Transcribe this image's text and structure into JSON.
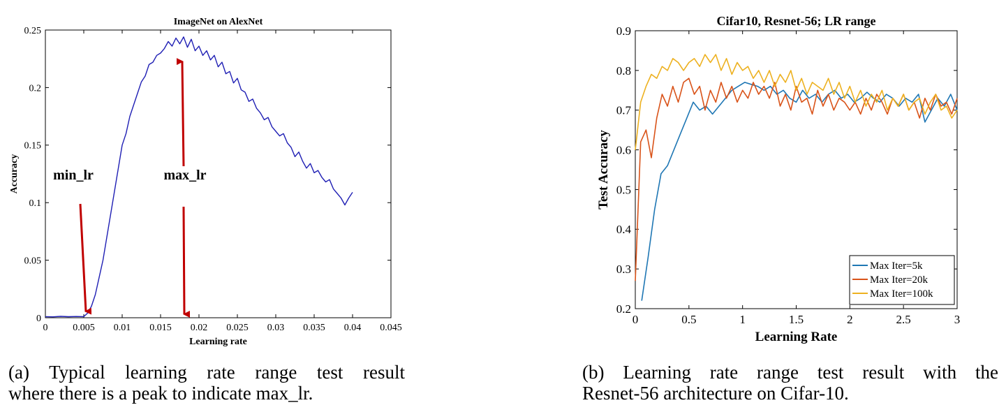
{
  "chart_data": [
    {
      "type": "line",
      "title": "ImageNet on AlexNet",
      "xlabel": "Learning rate",
      "ylabel": "Accuracy",
      "xlim": [
        0,
        0.045
      ],
      "ylim": [
        0,
        0.25
      ],
      "xticks": [
        0,
        0.005,
        0.01,
        0.015,
        0.02,
        0.025,
        0.03,
        0.035,
        0.04,
        0.045
      ],
      "xtick_labels": [
        "0",
        "0.005",
        "0.01",
        "0.015",
        "0.02",
        "0.025",
        "0.03",
        "0.035",
        "0.04",
        "0.045"
      ],
      "yticks": [
        0,
        0.05,
        0.1,
        0.15,
        0.2,
        0.25
      ],
      "ytick_labels": [
        "0",
        "0.05",
        "0.1",
        "0.15",
        "0.2",
        "0.25"
      ],
      "grid": false,
      "series": [
        {
          "name": "accuracy",
          "color": "#1f1fb4",
          "x": [
            0,
            0.001,
            0.002,
            0.003,
            0.004,
            0.005,
            0.0055,
            0.006,
            0.0065,
            0.007,
            0.0075,
            0.008,
            0.0085,
            0.009,
            0.0095,
            0.01,
            0.0105,
            0.011,
            0.0115,
            0.012,
            0.0125,
            0.013,
            0.0135,
            0.014,
            0.0145,
            0.015,
            0.0155,
            0.016,
            0.0165,
            0.017,
            0.0175,
            0.018,
            0.0185,
            0.019,
            0.0195,
            0.02,
            0.0205,
            0.021,
            0.0215,
            0.022,
            0.0225,
            0.023,
            0.0235,
            0.024,
            0.0245,
            0.025,
            0.0255,
            0.026,
            0.0265,
            0.027,
            0.0275,
            0.028,
            0.0285,
            0.029,
            0.0295,
            0.03,
            0.0305,
            0.031,
            0.0315,
            0.032,
            0.0325,
            0.033,
            0.0335,
            0.034,
            0.0345,
            0.035,
            0.0355,
            0.036,
            0.0365,
            0.037,
            0.0375,
            0.038,
            0.0385,
            0.039,
            0.0395,
            0.04
          ],
          "y": [
            0.001,
            0.0008,
            0.0012,
            0.0009,
            0.0011,
            0.001,
            0.004,
            0.01,
            0.02,
            0.035,
            0.05,
            0.07,
            0.09,
            0.11,
            0.13,
            0.15,
            0.16,
            0.175,
            0.185,
            0.195,
            0.205,
            0.21,
            0.22,
            0.222,
            0.228,
            0.23,
            0.234,
            0.24,
            0.236,
            0.243,
            0.238,
            0.244,
            0.235,
            0.242,
            0.232,
            0.236,
            0.228,
            0.232,
            0.224,
            0.228,
            0.218,
            0.222,
            0.212,
            0.214,
            0.204,
            0.208,
            0.198,
            0.196,
            0.188,
            0.19,
            0.182,
            0.178,
            0.172,
            0.174,
            0.166,
            0.162,
            0.158,
            0.16,
            0.152,
            0.148,
            0.14,
            0.144,
            0.136,
            0.13,
            0.134,
            0.126,
            0.128,
            0.122,
            0.118,
            0.12,
            0.112,
            0.108,
            0.104,
            0.098,
            0.104,
            0.109
          ]
        }
      ],
      "annotations": [
        {
          "label": "min_lr",
          "x": 0.005,
          "label_y": 0.12
        },
        {
          "label": "max_lr",
          "x": 0.018,
          "label_y": 0.12
        }
      ]
    },
    {
      "type": "line",
      "title": "Cifar10, Resnet-56; LR range",
      "xlabel": "Learning Rate",
      "ylabel": "Test Accuracy",
      "xlim": [
        0,
        3
      ],
      "ylim": [
        0.2,
        0.9
      ],
      "xticks": [
        0,
        0.5,
        1,
        1.5,
        2,
        2.5,
        3
      ],
      "xtick_labels": [
        "0",
        "0.5",
        "1",
        "1.5",
        "2",
        "2.5",
        "3"
      ],
      "yticks": [
        0.2,
        0.3,
        0.4,
        0.5,
        0.6,
        0.7,
        0.8,
        0.9
      ],
      "ytick_labels": [
        "0.2",
        "0.3",
        "0.4",
        "0.5",
        "0.6",
        "0.7",
        "0.8",
        "0.9"
      ],
      "grid": false,
      "legend_position": "bottom-right",
      "series": [
        {
          "name": "Max Iter=5k",
          "color": "#1f77b4",
          "x": [
            0.06,
            0.12,
            0.18,
            0.24,
            0.3,
            0.36,
            0.42,
            0.48,
            0.54,
            0.6,
            0.66,
            0.72,
            0.78,
            0.84,
            0.9,
            0.96,
            1.02,
            1.08,
            1.14,
            1.2,
            1.26,
            1.32,
            1.38,
            1.44,
            1.5,
            1.56,
            1.62,
            1.68,
            1.74,
            1.8,
            1.86,
            1.92,
            1.98,
            2.04,
            2.1,
            2.16,
            2.22,
            2.28,
            2.34,
            2.4,
            2.46,
            2.52,
            2.58,
            2.64,
            2.7,
            2.76,
            2.82,
            2.88,
            2.94,
            3.0
          ],
          "y": [
            0.22,
            0.33,
            0.45,
            0.54,
            0.56,
            0.6,
            0.64,
            0.68,
            0.72,
            0.7,
            0.71,
            0.69,
            0.71,
            0.73,
            0.75,
            0.76,
            0.77,
            0.765,
            0.76,
            0.75,
            0.76,
            0.74,
            0.75,
            0.73,
            0.72,
            0.75,
            0.73,
            0.74,
            0.72,
            0.74,
            0.75,
            0.73,
            0.74,
            0.72,
            0.73,
            0.745,
            0.73,
            0.72,
            0.74,
            0.73,
            0.71,
            0.73,
            0.72,
            0.74,
            0.67,
            0.7,
            0.73,
            0.71,
            0.74,
            0.7
          ]
        },
        {
          "name": "Max Iter=20k",
          "color": "#d95319",
          "x": [
            0,
            0.05,
            0.1,
            0.15,
            0.2,
            0.25,
            0.3,
            0.35,
            0.4,
            0.45,
            0.5,
            0.55,
            0.6,
            0.65,
            0.7,
            0.75,
            0.8,
            0.85,
            0.9,
            0.95,
            1.0,
            1.05,
            1.1,
            1.15,
            1.2,
            1.25,
            1.3,
            1.35,
            1.4,
            1.45,
            1.5,
            1.55,
            1.6,
            1.65,
            1.7,
            1.75,
            1.8,
            1.85,
            1.9,
            1.95,
            2.0,
            2.05,
            2.1,
            2.15,
            2.2,
            2.25,
            2.3,
            2.35,
            2.4,
            2.45,
            2.5,
            2.55,
            2.6,
            2.65,
            2.7,
            2.75,
            2.8,
            2.85,
            2.9,
            2.95,
            3.0
          ],
          "y": [
            0.27,
            0.62,
            0.65,
            0.58,
            0.68,
            0.74,
            0.71,
            0.76,
            0.72,
            0.77,
            0.78,
            0.74,
            0.76,
            0.7,
            0.75,
            0.72,
            0.77,
            0.73,
            0.76,
            0.72,
            0.75,
            0.73,
            0.77,
            0.74,
            0.76,
            0.73,
            0.77,
            0.71,
            0.74,
            0.7,
            0.76,
            0.72,
            0.73,
            0.69,
            0.75,
            0.71,
            0.74,
            0.7,
            0.73,
            0.72,
            0.7,
            0.72,
            0.69,
            0.73,
            0.7,
            0.74,
            0.72,
            0.69,
            0.73,
            0.71,
            0.74,
            0.7,
            0.72,
            0.68,
            0.73,
            0.7,
            0.74,
            0.71,
            0.72,
            0.69,
            0.73
          ]
        },
        {
          "name": "Max Iter=100k",
          "color": "#edb120",
          "x": [
            0,
            0.05,
            0.1,
            0.15,
            0.2,
            0.25,
            0.3,
            0.35,
            0.4,
            0.45,
            0.5,
            0.55,
            0.6,
            0.65,
            0.7,
            0.75,
            0.8,
            0.85,
            0.9,
            0.95,
            1.0,
            1.05,
            1.1,
            1.15,
            1.2,
            1.25,
            1.3,
            1.35,
            1.4,
            1.45,
            1.5,
            1.55,
            1.6,
            1.65,
            1.7,
            1.75,
            1.8,
            1.85,
            1.9,
            1.95,
            2.0,
            2.05,
            2.1,
            2.15,
            2.2,
            2.25,
            2.3,
            2.35,
            2.4,
            2.45,
            2.5,
            2.55,
            2.6,
            2.65,
            2.7,
            2.75,
            2.8,
            2.85,
            2.9,
            2.95,
            3.0
          ],
          "y": [
            0.6,
            0.72,
            0.76,
            0.79,
            0.78,
            0.81,
            0.8,
            0.83,
            0.82,
            0.8,
            0.82,
            0.83,
            0.81,
            0.84,
            0.82,
            0.84,
            0.8,
            0.83,
            0.79,
            0.82,
            0.8,
            0.81,
            0.78,
            0.8,
            0.77,
            0.8,
            0.76,
            0.79,
            0.77,
            0.8,
            0.75,
            0.78,
            0.74,
            0.77,
            0.76,
            0.75,
            0.78,
            0.74,
            0.77,
            0.73,
            0.76,
            0.72,
            0.75,
            0.71,
            0.74,
            0.72,
            0.75,
            0.7,
            0.73,
            0.71,
            0.74,
            0.7,
            0.72,
            0.73,
            0.69,
            0.72,
            0.74,
            0.7,
            0.71,
            0.68,
            0.7
          ]
        }
      ]
    }
  ],
  "captions": {
    "a_line1": "(a) Typical learning rate range test result",
    "a_line2": "where there is a peak to indicate max_lr.",
    "b_line1": "(b) Learning rate range test result with the",
    "b_line2": "Resnet-56 architecture on Cifar-10."
  }
}
